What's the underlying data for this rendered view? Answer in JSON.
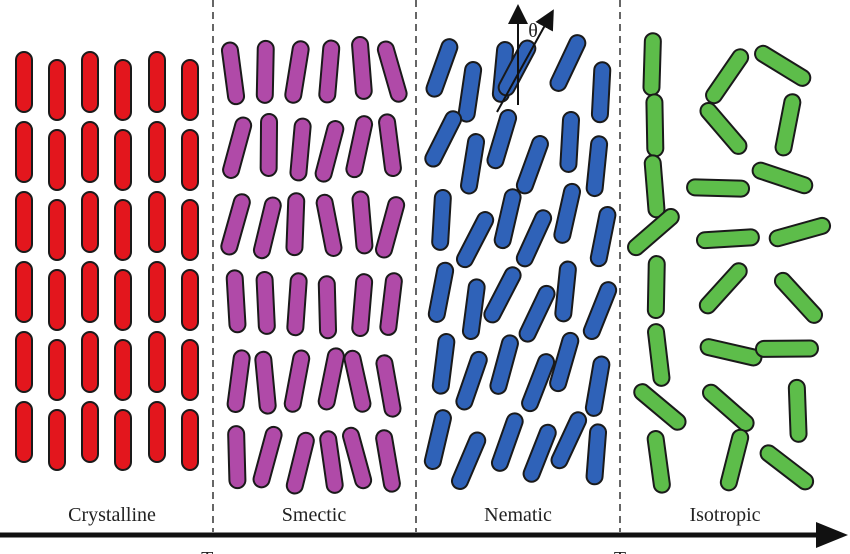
{
  "phases": [
    {
      "label": "Crystalline"
    },
    {
      "label": "Smectic"
    },
    {
      "label": "Nematic"
    },
    {
      "label": "Isotropic"
    }
  ],
  "angle_label": "θ",
  "temperature_markers": [
    "Tm",
    "T"
  ]
}
